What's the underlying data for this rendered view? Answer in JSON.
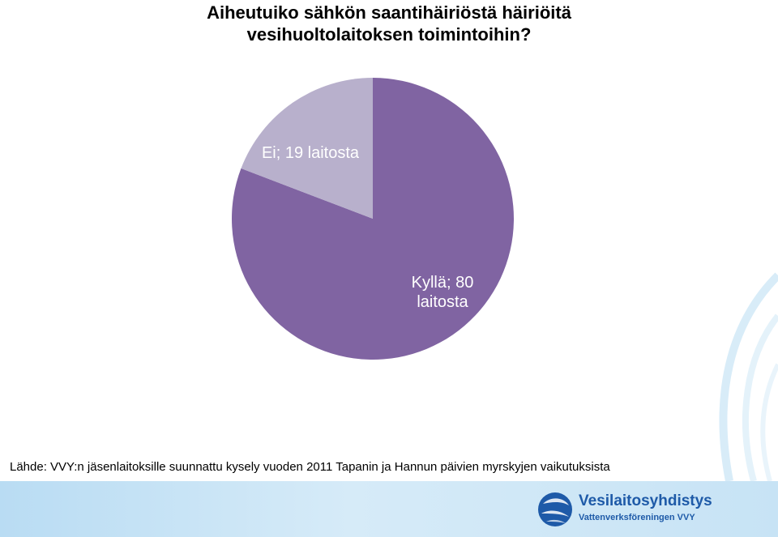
{
  "title": {
    "line1": "Aiheutuiko sähkön saantihäiriöstä häiriöitä",
    "line2": "vesihuoltolaitoksen toimintoihin?"
  },
  "chart_data": {
    "type": "pie",
    "title": "Aiheutuiko sähkön saantihäiriöstä häiriöitä vesihuoltolaitoksen toimintoihin?",
    "slices": [
      {
        "label": "Kyllä",
        "value": 80,
        "label_lines": [
          "Kyllä; 80",
          "laitosta"
        ],
        "color": "#8064a2"
      },
      {
        "label": "Ei",
        "value": 19,
        "label_lines": [
          "Ei; 19 laitosta"
        ],
        "color": "#b8b0cc"
      }
    ]
  },
  "source": "Lähde: VVY:n jäsenlaitoksille suunnattu kysely vuoden 2011 Tapanin ja Hannun päivien myrskyjen vaikutuksista",
  "logo": {
    "name": "Vesilaitosyhdistys",
    "subtitle": "Vattenverksföreningen VVY",
    "color": "#1e5aa8"
  }
}
